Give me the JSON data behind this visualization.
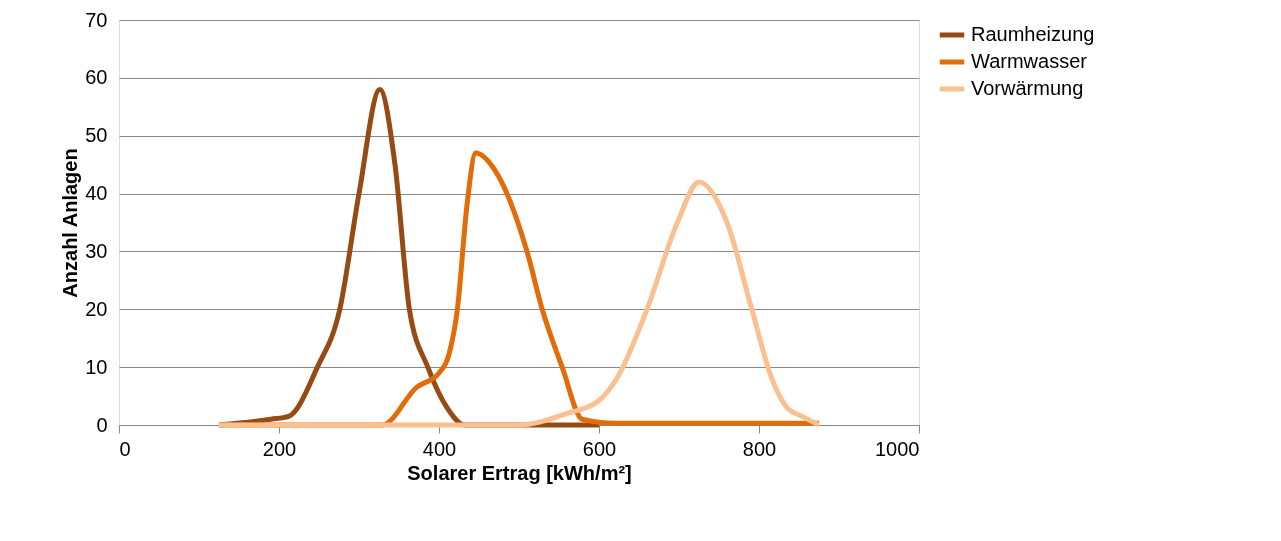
{
  "chart_data": {
    "type": "line",
    "xlabel": "Solarer Ertrag [kWh/m²]",
    "ylabel": "Anzahl Anlagen",
    "xlim": [
      0,
      1000
    ],
    "xticks": [
      0,
      200,
      400,
      600,
      800,
      1000
    ],
    "ylim": [
      0,
      70
    ],
    "yticks": [
      0,
      10,
      20,
      30,
      40,
      50,
      60,
      70
    ],
    "grid": "y",
    "legend": "right",
    "marker": "none",
    "line_style": "solid",
    "series": [
      {
        "name": "Raumheizung",
        "color": "#964b14",
        "x": [
          125,
          190,
          212,
          248,
          276,
          300,
          326,
          345,
          363,
          386,
          410,
          432,
          500,
          600
        ],
        "values": [
          0,
          1,
          1.5,
          10,
          20,
          40,
          58,
          45,
          20,
          10,
          3,
          0,
          0,
          0
        ]
      },
      {
        "name": "Warmwasser",
        "color": "#e36c0a",
        "x": [
          125,
          329,
          372,
          400,
          412,
          423,
          435,
          446,
          470,
          510,
          529,
          554,
          579,
          620,
          875
        ],
        "values": [
          0,
          0,
          6.5,
          9,
          12,
          20,
          38,
          47,
          44,
          30,
          20,
          10,
          1,
          0.3,
          0.3
        ]
      },
      {
        "name": "Vorwärmung",
        "color": "#fac090",
        "x": [
          125,
          500,
          560,
          598,
          622,
          660,
          698,
          725,
          760,
          791,
          816,
          835,
          854,
          875
        ],
        "values": [
          0,
          0,
          2,
          4,
          8,
          20,
          35,
          42,
          35,
          20,
          8,
          3,
          1.5,
          0
        ]
      }
    ]
  }
}
